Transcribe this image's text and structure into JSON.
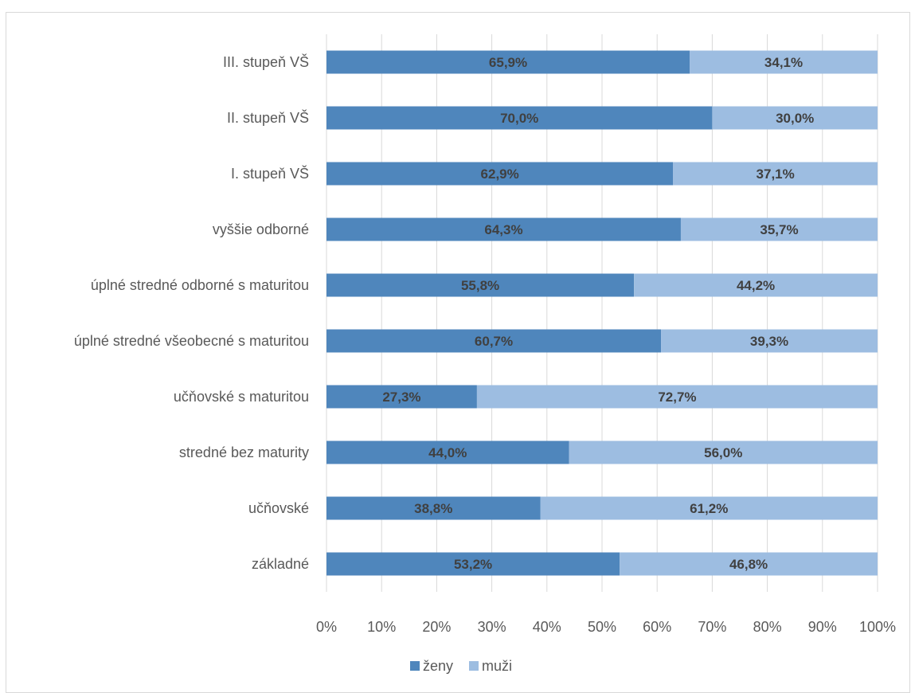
{
  "chart_data": {
    "type": "bar",
    "orientation": "horizontal",
    "stacked": "percent",
    "categories": [
      "III. stupeň VŠ",
      "II. stupeň VŠ",
      "I. stupeň VŠ",
      "vyššie odborné",
      "úplné stredné odborné s maturitou",
      "úplné stredné všeobecné s maturitou",
      "učňovské s maturitou",
      "stredné bez maturity",
      "učňovské",
      "základné"
    ],
    "series": [
      {
        "name": "ženy",
        "color": "#4f86bc",
        "values": [
          65.9,
          70.0,
          62.9,
          64.3,
          55.8,
          60.7,
          27.3,
          44.0,
          38.8,
          53.2
        ],
        "labels": [
          "65,9%",
          "70,0%",
          "62,9%",
          "64,3%",
          "55,8%",
          "60,7%",
          "27,3%",
          "44,0%",
          "38,8%",
          "53,2%"
        ]
      },
      {
        "name": "muži",
        "color": "#9dbde1",
        "values": [
          34.1,
          30.0,
          37.1,
          35.7,
          44.2,
          39.3,
          72.7,
          56.0,
          61.2,
          46.8
        ],
        "labels": [
          "34,1%",
          "30,0%",
          "37,1%",
          "35,7%",
          "44,2%",
          "39,3%",
          "72,7%",
          "56,0%",
          "61,2%",
          "46,8%"
        ]
      }
    ],
    "xlim": [
      0,
      100
    ],
    "x_ticks": [
      "0%",
      "10%",
      "20%",
      "30%",
      "40%",
      "50%",
      "60%",
      "70%",
      "80%",
      "90%",
      "100%"
    ],
    "grid": true,
    "legend": "bottom"
  }
}
